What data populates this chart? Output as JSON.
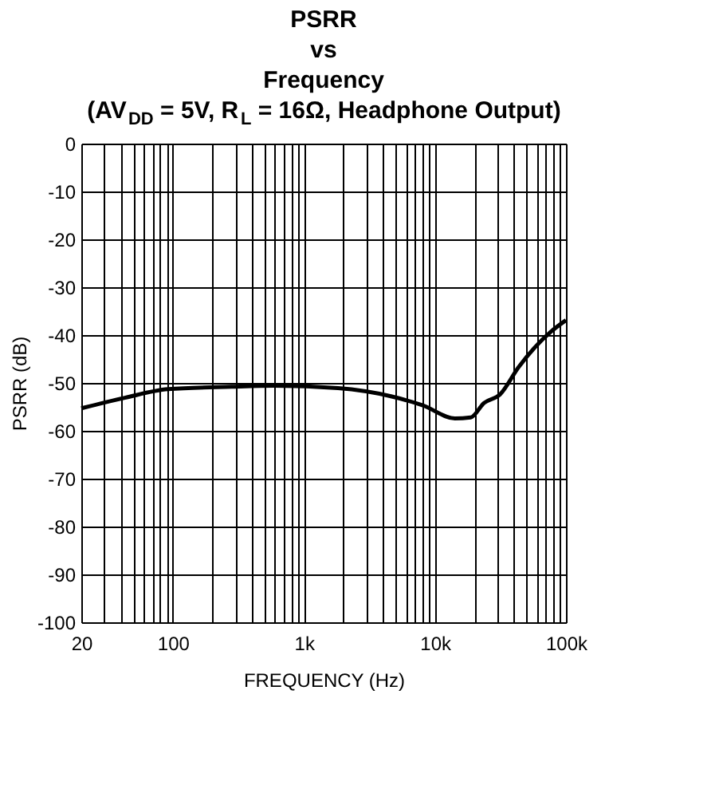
{
  "chart_data": {
    "type": "line",
    "title": [
      "PSRR",
      "vs",
      "Frequency",
      "(AV$_{DD}$ = 5V, R$_{L}$ = 16Ω, Headphone Output)"
    ],
    "xlabel": "FREQUENCY (Hz)",
    "ylabel": "PSRR (dB)",
    "x": [
      20,
      43,
      92,
      280,
      593,
      1820,
      4620,
      8090,
      14200,
      18750,
      23700,
      31400,
      43500,
      76000,
      100000
    ],
    "series": [
      {
        "color": "#000000",
        "values": [
          -55.3,
          -53.1,
          -51.3,
          -50.8,
          -50.6,
          -51.1,
          -52.8,
          -54.7,
          -57.4,
          -57.2,
          -54.2,
          -52.4,
          -46.7,
          -39.4,
          -36.9
        ]
      }
    ],
    "log": "x",
    "xlim": [
      20,
      100000
    ],
    "ylim": [
      -100,
      0
    ],
    "xticks": [
      20,
      {
        "value": 30,
        "label": null
      },
      {
        "value": 40,
        "label": null
      },
      {
        "value": 50,
        "label": null
      },
      {
        "value": 60,
        "label": null
      },
      {
        "value": 70,
        "label": null
      },
      {
        "value": 80,
        "label": null
      },
      {
        "value": 90,
        "label": null
      },
      100,
      {
        "value": 200,
        "label": null
      },
      {
        "value": 300,
        "label": null
      },
      {
        "value": 400,
        "label": null
      },
      {
        "value": 500,
        "label": null
      },
      {
        "value": 600,
        "label": null
      },
      {
        "value": 700,
        "label": null
      },
      {
        "value": 800,
        "label": null
      },
      {
        "value": 900,
        "label": null
      },
      {
        "value": 1000,
        "label": "1k"
      },
      {
        "value": 2000,
        "label": null
      },
      {
        "value": 3000,
        "label": null
      },
      {
        "value": 4000,
        "label": null
      },
      {
        "value": 5000,
        "label": null
      },
      {
        "value": 6000,
        "label": null
      },
      {
        "value": 7000,
        "label": null
      },
      {
        "value": 8000,
        "label": null
      },
      {
        "value": 9000,
        "label": null
      },
      {
        "value": 10000,
        "label": "10k"
      },
      {
        "value": 20000,
        "label": null
      },
      {
        "value": 30000,
        "label": null
      },
      {
        "value": 40000,
        "label": null
      },
      {
        "value": 50000,
        "label": null
      },
      {
        "value": 60000,
        "label": null
      },
      {
        "value": 70000,
        "label": null
      },
      {
        "value": 80000,
        "label": null
      },
      {
        "value": 90000,
        "label": null
      },
      {
        "value": 100000,
        "label": "100k"
      }
    ],
    "yticks": [
      -100,
      -90,
      -80,
      -70,
      -60,
      -50,
      -40,
      -30,
      -20,
      -10,
      0
    ],
    "grid": true,
    "marker": "none",
    "line_style": "solid"
  }
}
